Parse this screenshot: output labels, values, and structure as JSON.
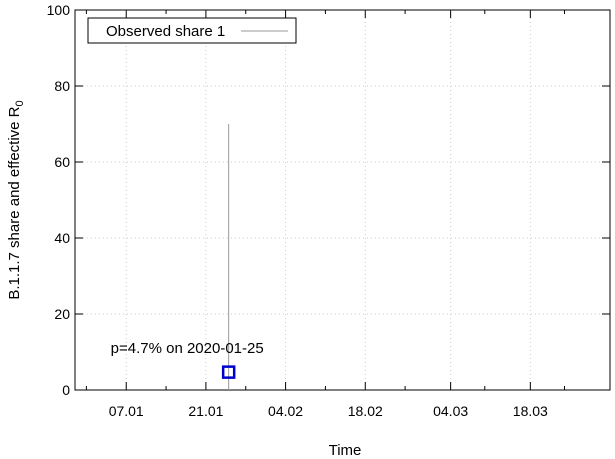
{
  "chart_data": {
    "type": "scatter",
    "xlabel": "Time",
    "ylabel": "B.1.1.7 share and effective R",
    "ylabel_subscript": "0",
    "xlim": [
      "2019-12-29",
      "2020-04-01"
    ],
    "ylim": [
      0,
      100
    ],
    "y_ticks": [
      0,
      20,
      40,
      60,
      80,
      100
    ],
    "x_ticks": [
      {
        "date": "2020-01-07",
        "label": "07.01"
      },
      {
        "date": "2020-01-21",
        "label": "21.01"
      },
      {
        "date": "2020-02-04",
        "label": "04.02"
      },
      {
        "date": "2020-02-18",
        "label": "18.02"
      },
      {
        "date": "2020-03-04",
        "label": "04.03"
      },
      {
        "date": "2020-03-18",
        "label": "18.03"
      }
    ],
    "grid": true,
    "legend_position": "top-left",
    "series": [
      {
        "name": "Observed share 1",
        "color": "#0000cc",
        "points": [
          {
            "x": "2020-01-25",
            "y": 4.7,
            "y_low": 0,
            "y_high": 70
          }
        ]
      }
    ],
    "errorbar_color": "#999999",
    "annotations": [
      {
        "text": "p=4.7% on 2020-01-25",
        "x": "2020-01-25",
        "y": 4.7
      }
    ]
  }
}
